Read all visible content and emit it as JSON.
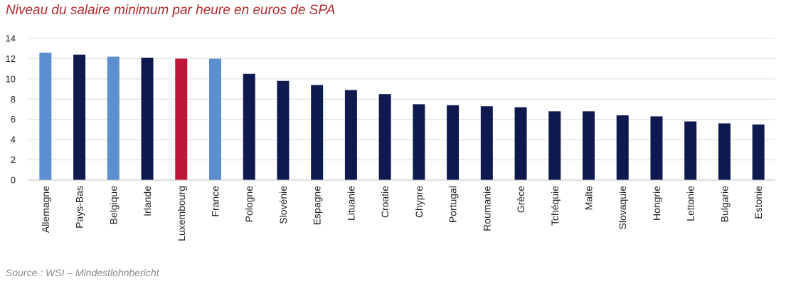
{
  "title": "Niveau du salaire minimum par heure en euros de SPA",
  "source": "Source : WSI – Mindestlohnbericht",
  "colors": {
    "default": "#0e1a4f",
    "highlight_light": "#5b8fcf",
    "highlight_red": "#c0163a",
    "grid": "#dcdcdc",
    "title": "#b12a2c"
  },
  "chart_data": {
    "type": "bar",
    "title": "Niveau du salaire minimum par heure en euros de SPA",
    "xlabel": "",
    "ylabel": "",
    "ylim": [
      0,
      14
    ],
    "yticks": [
      0,
      2,
      4,
      6,
      8,
      10,
      12,
      14
    ],
    "grid": true,
    "legend": "none",
    "categories": [
      "Allemagne",
      "Pays-Bas",
      "Belgique",
      "Irlande",
      "Luxembourg",
      "France",
      "Pologne",
      "Slovénie",
      "Espagne",
      "Lituanie",
      "Croatie",
      "Chypre",
      "Portugal",
      "Roumanie",
      "Grèce",
      "Tchéquie",
      "Malte",
      "Slovaquie",
      "Hongrie",
      "Lettonie",
      "Bulgarie",
      "Estonie"
    ],
    "values": [
      12.6,
      12.4,
      12.2,
      12.1,
      12.0,
      12.0,
      10.5,
      9.8,
      9.4,
      8.9,
      8.5,
      7.5,
      7.4,
      7.3,
      7.2,
      6.8,
      6.8,
      6.4,
      6.3,
      5.8,
      5.6,
      5.5
    ],
    "bar_colors": [
      "#5b8fcf",
      "#0e1a4f",
      "#5b8fcf",
      "#0e1a4f",
      "#c0163a",
      "#5b8fcf",
      "#0e1a4f",
      "#0e1a4f",
      "#0e1a4f",
      "#0e1a4f",
      "#0e1a4f",
      "#0e1a4f",
      "#0e1a4f",
      "#0e1a4f",
      "#0e1a4f",
      "#0e1a4f",
      "#0e1a4f",
      "#0e1a4f",
      "#0e1a4f",
      "#0e1a4f",
      "#0e1a4f",
      "#0e1a4f"
    ]
  }
}
